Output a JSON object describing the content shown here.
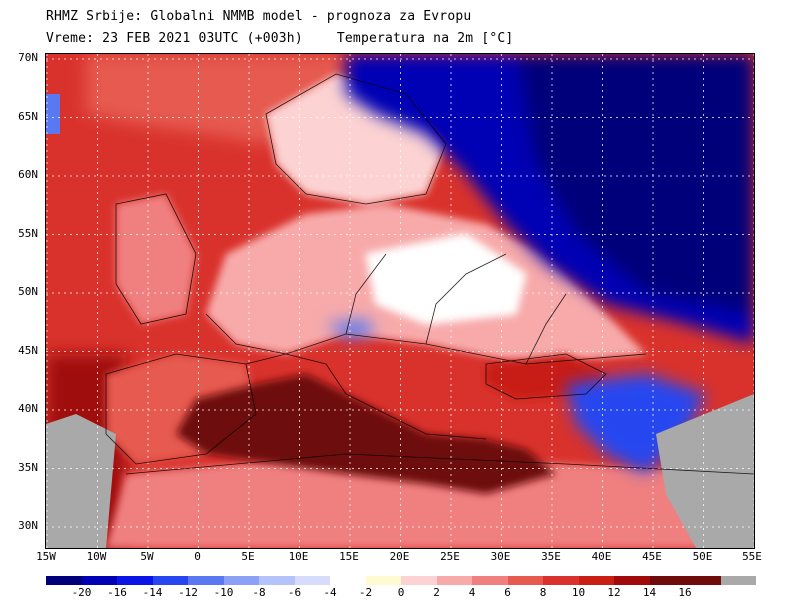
{
  "header": {
    "title": "RHMZ Srbije: Globalni NMMB model - prognoza za Evropu",
    "time": "Vreme: 23 FEB 2021 03UTC (+003h)",
    "variable": "Temperatura na 2m [°C]"
  },
  "map": {
    "region": "Europe",
    "lat_labels": [
      "70N",
      "65N",
      "60N",
      "55N",
      "50N",
      "45N",
      "40N",
      "35N",
      "30N"
    ],
    "lon_labels": [
      "15W",
      "10W",
      "5W",
      "0",
      "5E",
      "10E",
      "15E",
      "20E",
      "25E",
      "30E",
      "35E",
      "40E",
      "45E",
      "50E",
      "55E"
    ],
    "colors": {
      "sea_warm": "#c8281f",
      "mediterranean": "#6e0b0b",
      "land_mild": "#f08080",
      "cold_east": "#00007a",
      "mask_gray": "#a9a9a9",
      "grid": "#ffffff",
      "borders": "#000000"
    }
  },
  "legend": {
    "labels": [
      "-20",
      "-16",
      "-14",
      "-12",
      "-10",
      "-8",
      "-6",
      "-4",
      "-2",
      "0",
      "2",
      "4",
      "6",
      "8",
      "10",
      "12",
      "14",
      "16"
    ],
    "colors": [
      "#00007a",
      "#0000b4",
      "#0a14e6",
      "#2846f0",
      "#5a78f0",
      "#8ca0f5",
      "#b4c3fa",
      "#d7dcfc",
      "#ffffff",
      "#fffad2",
      "#fcd2d2",
      "#f8aaaa",
      "#f08080",
      "#e65a50",
      "#d9322c",
      "#c81e14",
      "#a00a0a",
      "#6e0b0b",
      "#6e0b0b",
      "#a9a9a9"
    ]
  }
}
